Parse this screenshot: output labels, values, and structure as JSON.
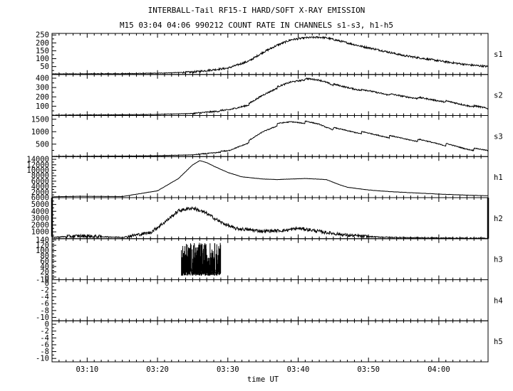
{
  "title": "INTERBALL-Tail RF15-I HARD/SOFT X-RAY EMISSION",
  "subtitle": "M15  03:04 04:06 990212  COUNT RATE IN CHANNELS s1-s3, h1-h5",
  "chart_data": {
    "type": "line",
    "title": "INTERBALL-Tail RF15-I HARD/SOFT X-RAY EMISSION",
    "subtitle": "M15  03:04 04:06 990212  COUNT RATE IN CHANNELS s1-s3, h1-h5",
    "xlabel": "time UT",
    "x_ticks": [
      "03:10",
      "03:20",
      "03:30",
      "03:40",
      "03:50",
      "04:00"
    ],
    "x_range_minutes": [
      185,
      247
    ],
    "grid": false,
    "panels": [
      {
        "name": "s1",
        "ylim": [
          0,
          260
        ],
        "y_ticks": [
          50,
          100,
          150,
          200,
          250
        ],
        "noise": 6,
        "x": [
          185,
          190,
          195,
          200,
          205,
          210,
          213,
          215,
          217,
          219,
          221,
          223,
          224,
          225,
          227,
          229,
          231,
          233,
          235,
          238,
          241,
          244,
          247
        ],
        "values": [
          3,
          4,
          5,
          8,
          15,
          40,
          85,
          140,
          185,
          220,
          232,
          236,
          232,
          222,
          200,
          178,
          160,
          140,
          120,
          100,
          80,
          62,
          50
        ]
      },
      {
        "name": "s2",
        "ylim": [
          0,
          440
        ],
        "y_ticks": [
          100,
          200,
          300,
          400
        ],
        "noise": 8,
        "x": [
          185,
          190,
          195,
          200,
          205,
          210,
          213,
          215,
          217,
          219,
          221,
          223,
          224,
          225,
          227,
          229,
          231,
          233,
          235,
          238,
          241,
          244,
          247
        ],
        "values": [
          4,
          6,
          8,
          12,
          22,
          55,
          120,
          220,
          300,
          360,
          390,
          380,
          360,
          330,
          300,
          275,
          250,
          225,
          205,
          180,
          150,
          110,
          75
        ],
        "sawtooth": 15
      },
      {
        "name": "s3",
        "ylim": [
          0,
          1650
        ],
        "y_ticks": [
          500,
          1000,
          1500
        ],
        "noise": 18,
        "x": [
          185,
          190,
          195,
          200,
          205,
          210,
          213,
          215,
          217,
          219,
          221,
          223,
          224,
          225,
          227,
          229,
          231,
          233,
          235,
          238,
          241,
          244,
          247
        ],
        "values": [
          10,
          15,
          20,
          35,
          70,
          200,
          600,
          1000,
          1280,
          1400,
          1380,
          1300,
          1200,
          1120,
          1040,
          960,
          880,
          800,
          720,
          620,
          480,
          320,
          240
        ],
        "sawtooth": 100
      },
      {
        "name": "h1",
        "ylim": [
          0,
          15000
        ],
        "y_ticks": [
          2000,
          4000,
          6000,
          8000,
          10000,
          12000,
          14000
        ],
        "noise": 50,
        "x": [
          185,
          189,
          195,
          200,
          203,
          205,
          206,
          207,
          208,
          210,
          212,
          215,
          217,
          219,
          221,
          224,
          225,
          226,
          227,
          230,
          233,
          236,
          240,
          244,
          247
        ],
        "values": [
          300,
          500,
          400,
          2500,
          7000,
          12000,
          13500,
          12800,
          11500,
          9200,
          7600,
          6800,
          6600,
          6800,
          7000,
          6600,
          5600,
          4600,
          3800,
          2800,
          2200,
          1800,
          1300,
          900,
          700
        ]
      },
      {
        "name": "h2",
        "ylim": [
          0,
          6000
        ],
        "y_ticks": [
          1000,
          2000,
          3000,
          4000,
          5000,
          6000
        ],
        "noise": 240,
        "x": [
          185,
          189,
          195,
          199,
          201,
          203,
          205,
          207,
          209,
          211,
          215,
          218,
          220,
          221,
          224,
          227,
          230,
          233,
          236,
          240,
          244,
          247
        ],
        "values": [
          200,
          400,
          200,
          900,
          2400,
          4100,
          4500,
          3700,
          2400,
          1500,
          1100,
          1200,
          1500,
          1400,
          900,
          500,
          300,
          200,
          150,
          100,
          80,
          60
        ]
      },
      {
        "name": "h3",
        "ylim": [
          -10,
          145
        ],
        "y_ticks": [
          -10,
          0,
          20,
          40,
          60,
          80,
          100,
          120,
          140
        ],
        "noise": 0,
        "burst": {
          "x_start": 203.4,
          "x_end": 209.0,
          "low": 5,
          "high": 130
        },
        "x": [
          185,
          203.3,
          209.1,
          247
        ],
        "values": [
          null,
          null,
          null,
          null
        ]
      },
      {
        "name": "h4",
        "ylim": [
          -11,
          1
        ],
        "y_ticks": [
          -10,
          -8,
          -6,
          -4,
          -2,
          0
        ],
        "noise": 0,
        "x": [],
        "values": []
      },
      {
        "name": "h5",
        "ylim": [
          -11,
          1
        ],
        "y_ticks": [
          -10,
          -8,
          -6,
          -4,
          -2,
          0
        ],
        "noise": 0,
        "x": [],
        "values": []
      }
    ]
  }
}
